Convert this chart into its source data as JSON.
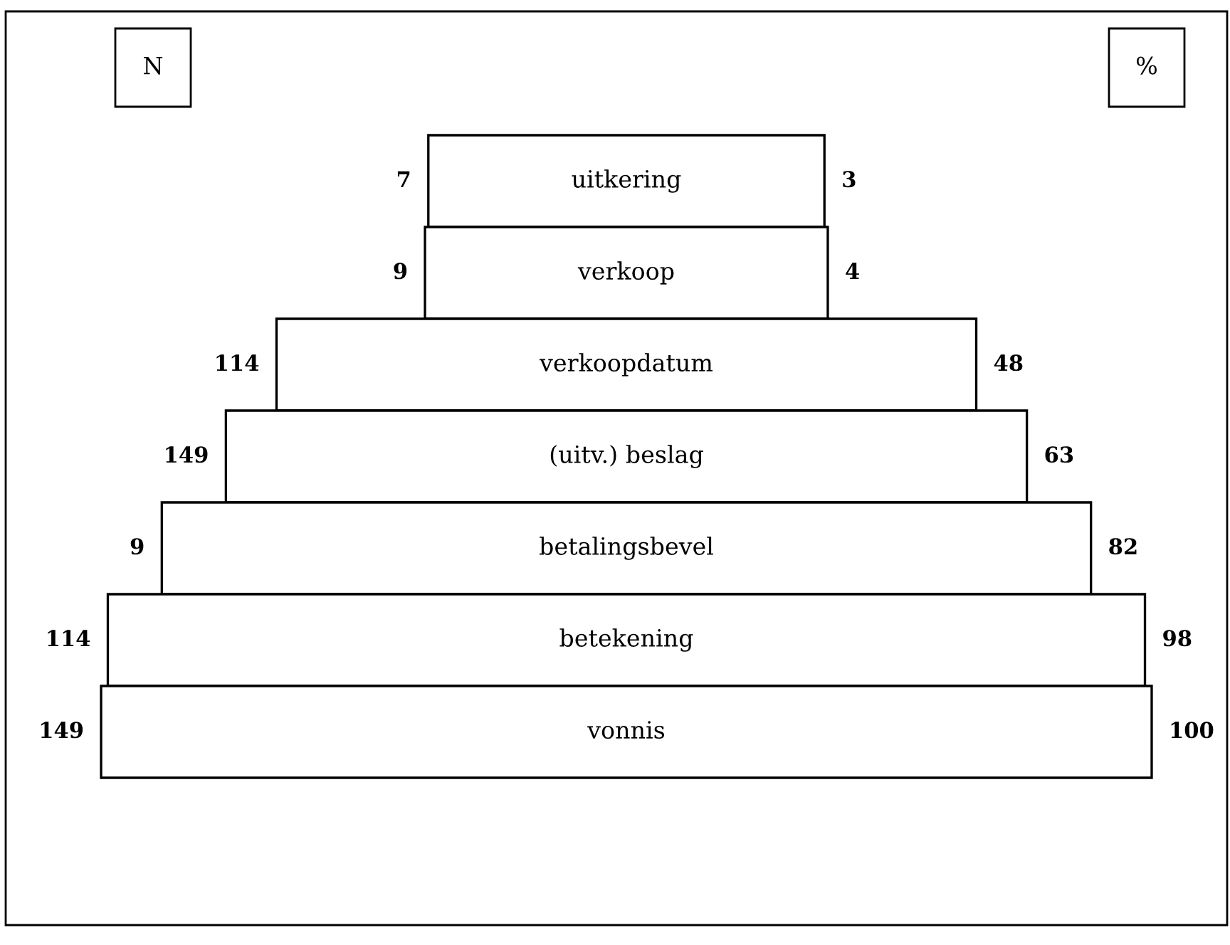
{
  "chart_data": {
    "type": "other",
    "data_labels": true,
    "categories": [
      "uitkering",
      "verkoop",
      "verkoopdatum",
      "(uitv.) beslag",
      "betalingsbevel",
      "betekening",
      "vonnis"
    ],
    "series": [
      {
        "name": "N",
        "values": [
          7,
          9,
          114,
          149,
          9,
          114,
          149
        ]
      },
      {
        "name": "%",
        "values": [
          3,
          4,
          48,
          63,
          82,
          98,
          100
        ]
      }
    ]
  }
}
